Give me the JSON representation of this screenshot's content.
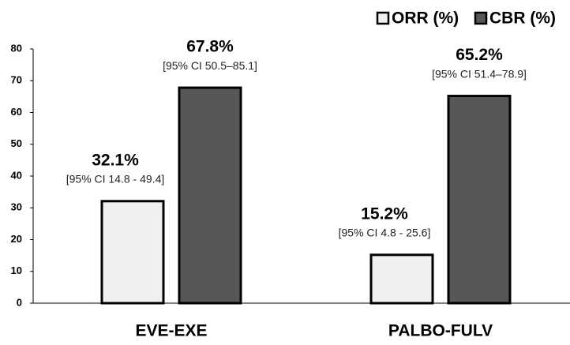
{
  "chart_data": {
    "type": "bar",
    "categories": [
      "EVE-EXE",
      "PALBO-FULV"
    ],
    "series": [
      {
        "name": "ORR (%)",
        "color": "#f0f0f0",
        "values": [
          32.1,
          15.2
        ],
        "value_labels": [
          "32.1%",
          "15.2%"
        ],
        "annotations": [
          "[95% CI 14.8 - 49.4]",
          "[95% CI 4.8 - 25.6]"
        ]
      },
      {
        "name": "CBR (%)",
        "color": "#575757",
        "values": [
          67.8,
          65.2
        ],
        "value_labels": [
          "67.8%",
          "65.2%"
        ],
        "annotations": [
          "[95% CI 50.5–85.1]",
          "[95% CI 51.4–78.9]"
        ]
      }
    ],
    "ylim": [
      0,
      80
    ],
    "yticks": [
      0,
      10,
      20,
      30,
      40,
      50,
      60,
      70,
      80
    ],
    "grid": false,
    "legend": "top-right"
  }
}
